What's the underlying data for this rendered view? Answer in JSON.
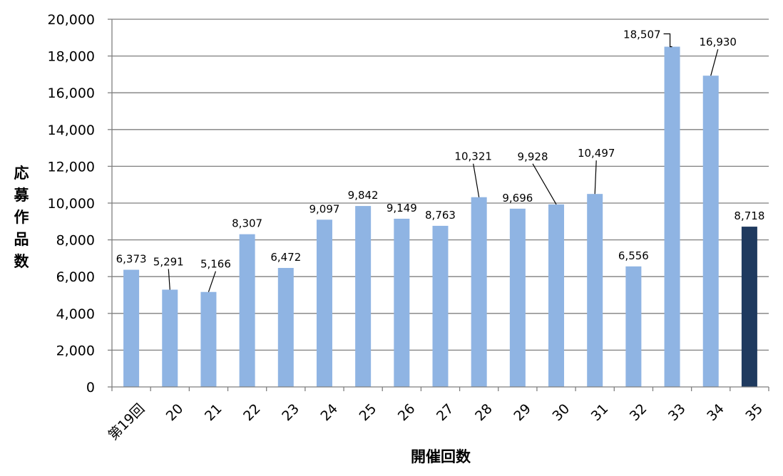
{
  "chart_data": {
    "type": "bar",
    "xlabel": "開催回数",
    "ylabel": "応募作品数",
    "ylim": [
      0,
      20000
    ],
    "yticks": [
      0,
      2000,
      4000,
      6000,
      8000,
      10000,
      12000,
      14000,
      16000,
      18000,
      20000
    ],
    "ytick_labels": [
      "0",
      "2,000",
      "4,000",
      "6,000",
      "8,000",
      "10,000",
      "12,000",
      "14,000",
      "16,000",
      "18,000",
      "20,000"
    ],
    "grid": true,
    "categories": [
      "第19回",
      "20",
      "21",
      "22",
      "23",
      "24",
      "25",
      "26",
      "27",
      "28",
      "29",
      "30",
      "31",
      "32",
      "33",
      "34",
      "35"
    ],
    "values": [
      6373,
      5291,
      5166,
      8307,
      6472,
      9097,
      9842,
      9149,
      8763,
      10321,
      9696,
      9928,
      10497,
      6556,
      18507,
      16930,
      8718
    ],
    "value_labels": [
      "6,373",
      "5,291",
      "5,166",
      "8,307",
      "6,472",
      "9,097",
      "9,842",
      "9,149",
      "8,763",
      "10,321",
      "9,696",
      "9,928",
      "10,497",
      "6,556",
      "18,507",
      "16,930",
      "8,718"
    ],
    "colors": {
      "bar": "#8fb4e3",
      "highlight": "#1f3a5f",
      "grid": "#7f7f7f",
      "axis": "#7f7f7f"
    },
    "highlight_index": 16
  }
}
